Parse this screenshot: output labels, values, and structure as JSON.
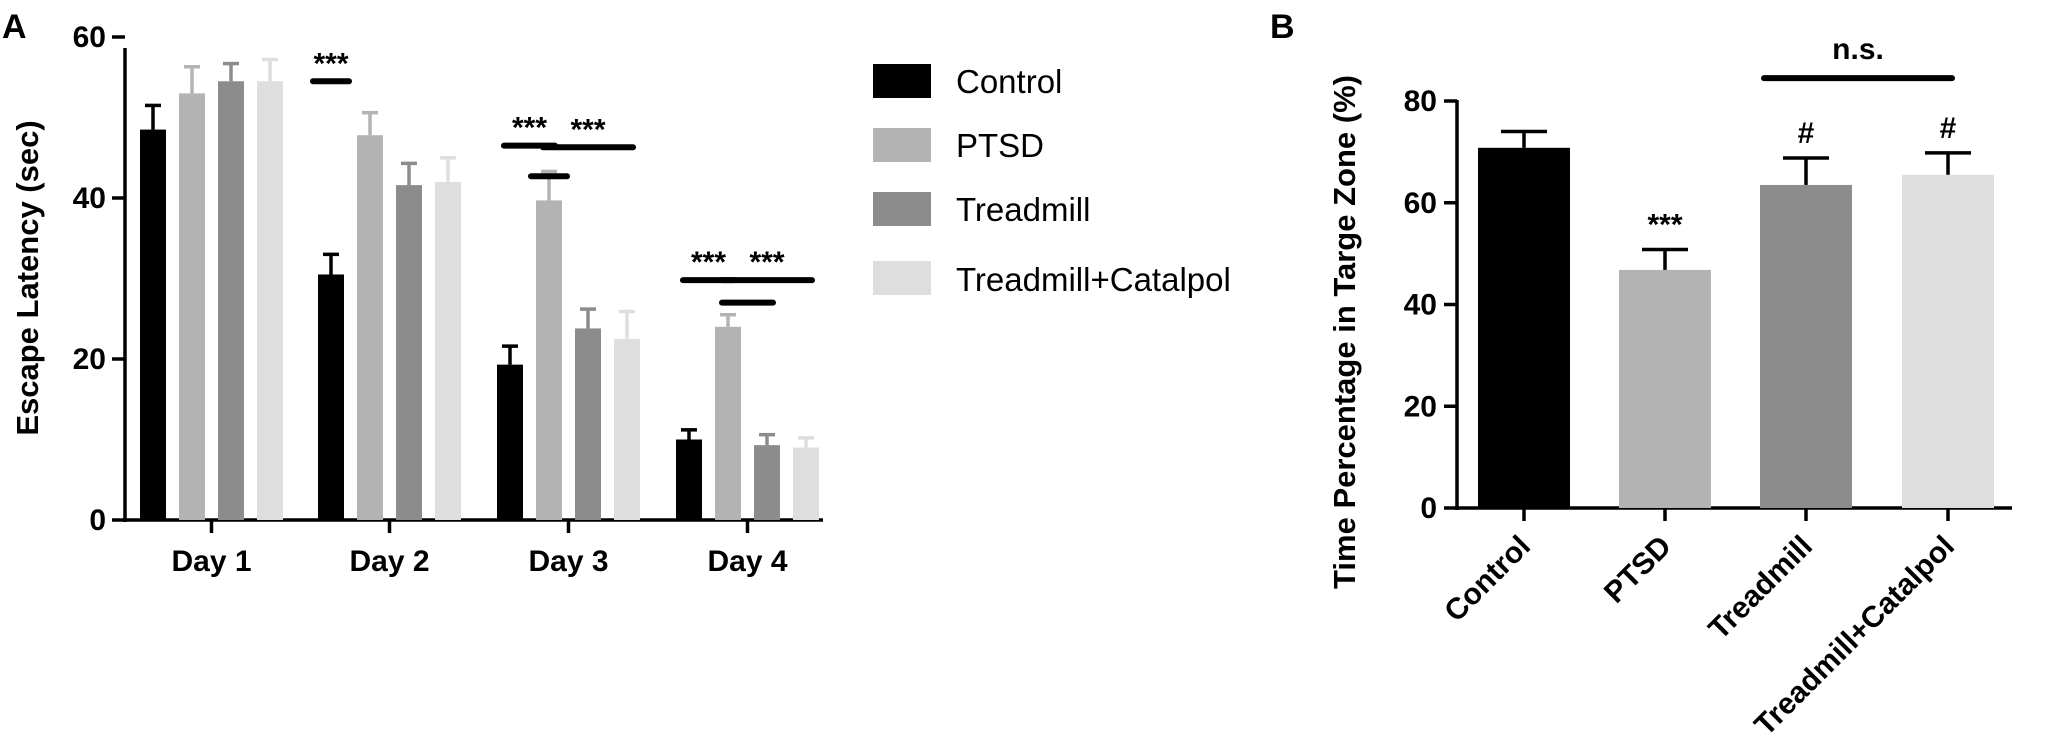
{
  "chart_data": [
    {
      "panel": "A",
      "type": "bar",
      "ylabel": "Escape Latency (sec)",
      "ylim": [
        0,
        60
      ],
      "yticks": [
        0,
        20,
        40,
        60
      ],
      "categories": [
        "Day 1",
        "Day 2",
        "Day 3",
        "Day 4"
      ],
      "legend_position": "right",
      "series": [
        {
          "name": "Control",
          "color": "#000000",
          "values": [
            48.5,
            30.5,
            19.3,
            10.0
          ],
          "errors": [
            3.0,
            2.5,
            2.3,
            1.2
          ]
        },
        {
          "name": "PTSD",
          "color": "#b3b3b3",
          "values": [
            53.0,
            47.8,
            39.7,
            24.0
          ],
          "errors": [
            3.3,
            2.8,
            3.6,
            1.5
          ]
        },
        {
          "name": "Treadmill",
          "color": "#8c8c8c",
          "values": [
            54.5,
            41.6,
            23.8,
            9.3
          ],
          "errors": [
            2.2,
            2.7,
            2.4,
            1.3
          ]
        },
        {
          "name": "Treadmill+Catalpol",
          "color": "#dedede",
          "values": [
            54.5,
            42.0,
            22.5,
            9.0
          ],
          "errors": [
            2.7,
            3.0,
            3.4,
            1.2
          ]
        }
      ],
      "annotations": [
        {
          "text": "***",
          "group": 1,
          "from_series": 0,
          "to_series": 0,
          "y": 54.5
        },
        {
          "text": "***",
          "group": 2,
          "from_series": 0,
          "to_series": 1,
          "y": 46.5
        },
        {
          "text": "",
          "group": 2,
          "from_series": 1,
          "to_series": 1,
          "y": 42.7
        },
        {
          "text": "***",
          "group": 2,
          "from_series": 1,
          "to_series": 3,
          "y": 46.3
        },
        {
          "text": "***",
          "group": 3,
          "from_series": 0,
          "to_series": 1,
          "y": 29.8
        },
        {
          "text": "",
          "group": 3,
          "from_series": 1,
          "to_series": 2,
          "y": 27.0
        },
        {
          "text": "***",
          "group": 3,
          "from_series": 1,
          "to_series": 3,
          "y": 29.8
        }
      ]
    },
    {
      "panel": "B",
      "type": "bar",
      "ylabel": "Time Percentage in Targe Zone (%)",
      "ylim": [
        0,
        80
      ],
      "yticks": [
        0,
        20,
        40,
        60,
        80
      ],
      "categories": [
        "Control",
        "PTSD",
        "Treadmill",
        "Treadmill+Catalpol"
      ],
      "colors": [
        "#000000",
        "#b3b3b3",
        "#8c8c8c",
        "#dedede"
      ],
      "values": [
        70.8,
        46.8,
        63.5,
        65.5
      ],
      "errors": [
        3.2,
        4.0,
        5.3,
        4.3
      ],
      "bar_labels": [
        "",
        "***",
        "#",
        "#"
      ],
      "bracket": {
        "text": "n.s.",
        "from": 2,
        "to": 3,
        "y": 84.5
      }
    }
  ],
  "figure_labels": {
    "a": "A",
    "b": "B"
  }
}
